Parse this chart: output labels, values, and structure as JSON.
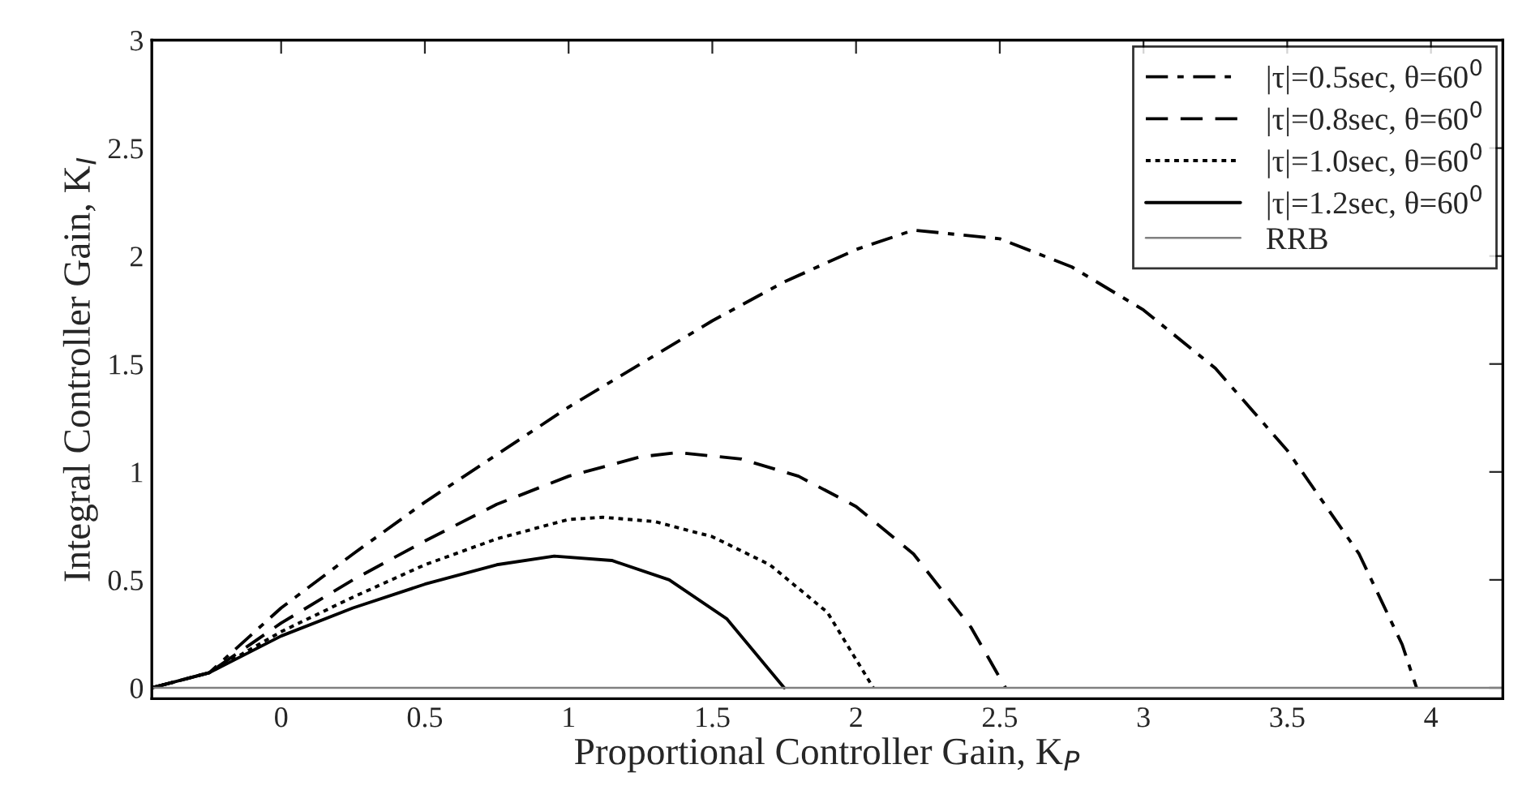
{
  "chart_data": {
    "type": "line",
    "xlabel": "Proportional Controller Gain, K$_{P}$",
    "ylabel": "Integral Controller Gain, K$_{I}$",
    "xlim": [
      -0.45,
      4.25
    ],
    "xticks": [
      0,
      0.5,
      1,
      1.5,
      2,
      2.5,
      3,
      3.5,
      4
    ],
    "ylim": [
      -0.05,
      3
    ],
    "yticks": [
      0,
      0.5,
      1,
      1.5,
      2,
      2.5,
      3
    ],
    "grid": false,
    "legend": "top right",
    "marker": "none",
    "series": [
      {
        "name": "|τ|=0.5sec, θ=60$^{0}$",
        "color": "#000000",
        "line_style": "dashdot",
        "x": [
          -0.45,
          -0.25,
          0,
          0.25,
          0.5,
          0.75,
          1.0,
          1.25,
          1.5,
          1.75,
          2.0,
          2.2,
          2.5,
          2.75,
          3.0,
          3.25,
          3.5,
          3.75,
          3.9,
          3.95
        ],
        "values": [
          0,
          0.07,
          0.37,
          0.62,
          0.86,
          1.08,
          1.3,
          1.5,
          1.7,
          1.88,
          2.03,
          2.12,
          2.08,
          1.95,
          1.75,
          1.48,
          1.1,
          0.62,
          0.2,
          0
        ]
      },
      {
        "name": "|τ|=0.8sec, θ=60$^{0}$",
        "color": "#000000",
        "line_style": "dashed",
        "x": [
          -0.45,
          -0.25,
          0,
          0.25,
          0.5,
          0.75,
          1.0,
          1.25,
          1.38,
          1.6,
          1.8,
          2.0,
          2.2,
          2.4,
          2.52
        ],
        "values": [
          0,
          0.07,
          0.3,
          0.5,
          0.68,
          0.85,
          0.98,
          1.07,
          1.09,
          1.06,
          0.98,
          0.84,
          0.62,
          0.28,
          0
        ]
      },
      {
        "name": "|τ|=1.0sec, θ=60$^{0}$",
        "color": "#000000",
        "line_style": "dotted",
        "x": [
          -0.45,
          -0.25,
          0,
          0.25,
          0.5,
          0.75,
          1.0,
          1.12,
          1.3,
          1.5,
          1.7,
          1.9,
          2.06
        ],
        "values": [
          0,
          0.07,
          0.26,
          0.42,
          0.57,
          0.69,
          0.78,
          0.79,
          0.77,
          0.7,
          0.57,
          0.35,
          0
        ]
      },
      {
        "name": "|τ|=1.2sec, θ=60$^{0}$",
        "color": "#000000",
        "line_style": "solid",
        "x": [
          -0.45,
          -0.25,
          0,
          0.25,
          0.5,
          0.75,
          0.95,
          1.15,
          1.35,
          1.55,
          1.75
        ],
        "values": [
          0,
          0.07,
          0.24,
          0.37,
          0.48,
          0.57,
          0.61,
          0.59,
          0.5,
          0.32,
          0
        ]
      },
      {
        "name": "RRB",
        "color": "#808080",
        "line_style": "solid",
        "x": [
          -0.45,
          4.25
        ],
        "values": [
          0,
          0
        ]
      }
    ]
  }
}
